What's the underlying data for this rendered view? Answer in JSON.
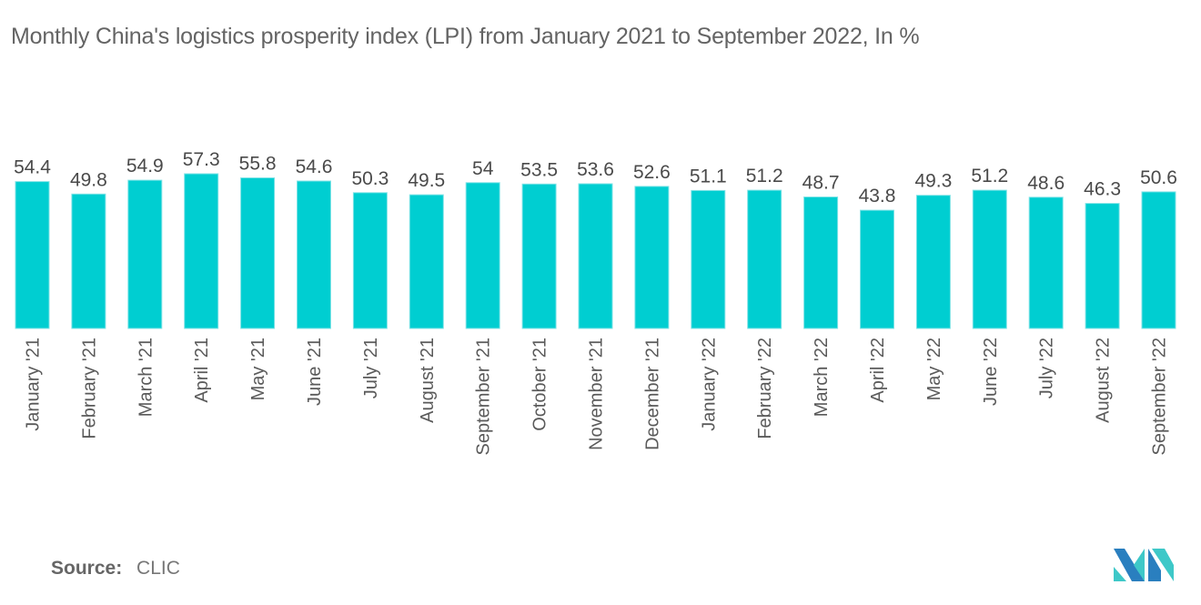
{
  "header": {
    "title": "Monthly China's logistics prosperity index (LPI) from January 2021 to September 2022, In %"
  },
  "footer": {
    "source_label": "Source:",
    "source_value": "CLIC",
    "logo_icon": "mordor-intelligence-logo-icon"
  },
  "colors": {
    "bar": "#00CED1",
    "bar_edge": "#7FE3E6",
    "logo_dark": "#2A7FBF",
    "logo_light": "#3EC8C8"
  },
  "chart_data": {
    "type": "bar",
    "title": "Monthly China's logistics prosperity index (LPI) from January 2021 to September 2022, In %",
    "xlabel": "",
    "ylabel": "",
    "ylim": [
      0,
      57.3
    ],
    "grid": false,
    "legend": "none",
    "categories": [
      "January '21",
      "February '21",
      "March '21",
      "April '21",
      "May '21",
      "June '21",
      "July '21",
      "August '21",
      "September '21",
      "October '21",
      "November '21",
      "December '21",
      "January '22",
      "February '22",
      "March '22",
      "April '22",
      "May '22",
      "June '22",
      "July '22",
      "August '22",
      "September '22"
    ],
    "values": [
      54.4,
      49.8,
      54.9,
      57.3,
      55.8,
      54.6,
      50.3,
      49.5,
      54,
      53.5,
      53.6,
      52.6,
      51.1,
      51.2,
      48.7,
      43.8,
      49.3,
      51.2,
      48.6,
      46.3,
      50.6
    ],
    "value_labels": [
      "54.4",
      "49.8",
      "54.9",
      "57.3",
      "55.8",
      "54.6",
      "50.3",
      "49.5",
      "54",
      "53.5",
      "53.6",
      "52.6",
      "51.1",
      "51.2",
      "48.7",
      "43.8",
      "49.3",
      "51.2",
      "48.6",
      "46.3",
      "50.6"
    ]
  }
}
